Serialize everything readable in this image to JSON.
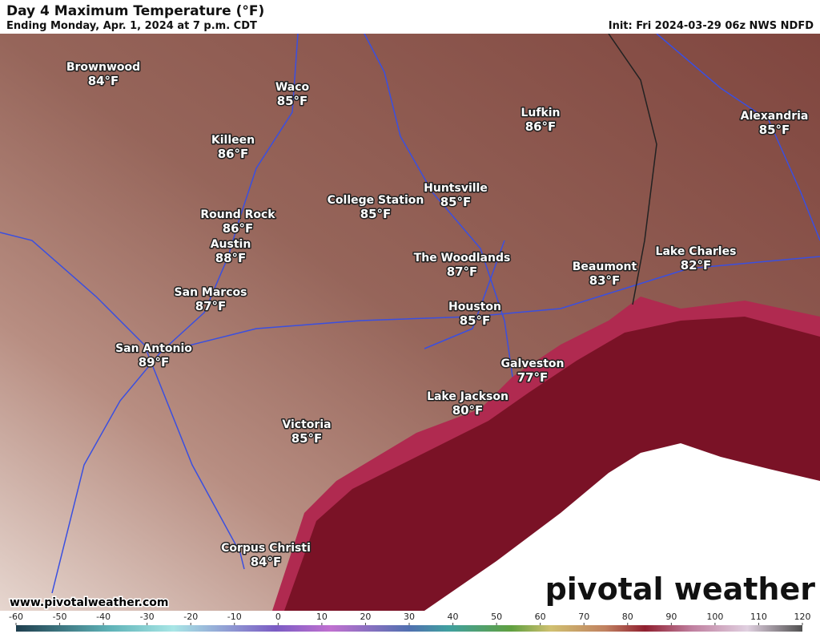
{
  "header": {
    "title": "Day 4 Maximum Temperature (°F)",
    "subtitle": "Ending Monday, Apr. 1, 2024 at 7 p.m. CDT",
    "init": "Init: Fri 2024-03-29 06z NWS NDFD"
  },
  "cities": [
    {
      "name": "Brownwood",
      "temp": "84°F"
    },
    {
      "name": "Waco",
      "temp": "85°F"
    },
    {
      "name": "Killeen",
      "temp": "86°F"
    },
    {
      "name": "Lufkin",
      "temp": "86°F"
    },
    {
      "name": "Alexandria",
      "temp": "85°F"
    },
    {
      "name": "College Station",
      "temp": "85°F"
    },
    {
      "name": "Huntsville",
      "temp": "85°F"
    },
    {
      "name": "Round Rock",
      "temp": "86°F"
    },
    {
      "name": "Austin",
      "temp": "88°F"
    },
    {
      "name": "The Woodlands",
      "temp": "87°F"
    },
    {
      "name": "Beaumont",
      "temp": "83°F"
    },
    {
      "name": "Lake Charles",
      "temp": "82°F"
    },
    {
      "name": "San Marcos",
      "temp": "87°F"
    },
    {
      "name": "Houston",
      "temp": "85°F"
    },
    {
      "name": "San Antonio",
      "temp": "89°F"
    },
    {
      "name": "Galveston",
      "temp": "77°F"
    },
    {
      "name": "Lake Jackson",
      "temp": "80°F"
    },
    {
      "name": "Victoria",
      "temp": "85°F"
    },
    {
      "name": "Corpus Christi",
      "temp": "84°F"
    }
  ],
  "watermark": "www.pivotalweather.com",
  "logo": "pivotal weather",
  "colorbar": {
    "ticks": [
      -60,
      -50,
      -40,
      -30,
      -20,
      -10,
      0,
      10,
      20,
      30,
      40,
      50,
      60,
      70,
      80,
      90,
      100,
      110,
      120
    ]
  }
}
